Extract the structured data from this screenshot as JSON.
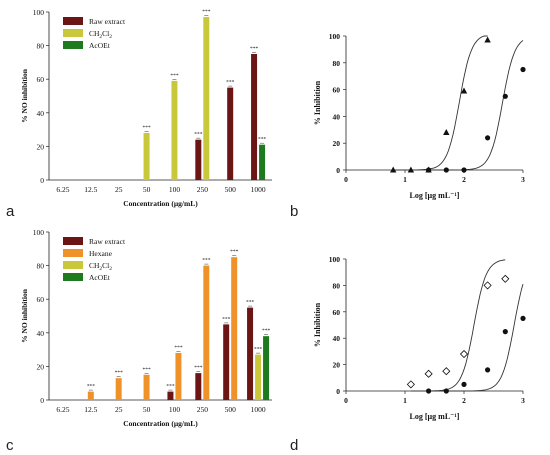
{
  "chart_data": [
    {
      "panel": "a",
      "type": "bar",
      "categories": [
        "6.25",
        "12.5",
        "25",
        "50",
        "100",
        "250",
        "500",
        "1000"
      ],
      "xlabel": "Concentration (µg/mL)",
      "ylabel": "% NO inhibition",
      "ylim": [
        0,
        100
      ],
      "yticks": [
        "0",
        "20",
        "40",
        "60",
        "80",
        "100"
      ],
      "legend_position": "top-left",
      "series": [
        {
          "name": "Raw extract",
          "color": "#6b1515",
          "values": [
            null,
            null,
            null,
            null,
            null,
            24,
            55,
            75
          ]
        },
        {
          "name": "CH2Cl2",
          "name_main": "CH",
          "name_sub1": "2",
          "name_mid": "Cl",
          "name_sub2": "2",
          "color": "#c8c83a",
          "values": [
            null,
            null,
            null,
            28,
            59,
            97,
            null,
            null
          ]
        },
        {
          "name": "AcOEt",
          "color": "#1e7a1e",
          "values": [
            null,
            null,
            null,
            null,
            null,
            null,
            null,
            21
          ]
        }
      ],
      "significance_label": "***"
    },
    {
      "panel": "b",
      "type": "scatter",
      "xlabel": "Log [µg mL⁻¹]",
      "ylabel": "% Inhibition",
      "xlim": [
        0,
        3
      ],
      "ylim": [
        0,
        100
      ],
      "xticks": [
        "0",
        "1",
        "2",
        "3"
      ],
      "yticks": [
        "0",
        "20",
        "40",
        "60",
        "80",
        "100"
      ],
      "series": [
        {
          "marker": "triangle",
          "x": [
            0.8,
            1.1,
            1.4,
            1.7,
            2.0,
            2.4
          ],
          "y": [
            0,
            0,
            0,
            28,
            59,
            97
          ]
        },
        {
          "marker": "circle",
          "x": [
            1.4,
            1.7,
            2.0,
            2.4,
            2.7,
            3.0
          ],
          "y": [
            0,
            0,
            0,
            24,
            55,
            75
          ]
        }
      ]
    },
    {
      "panel": "c",
      "type": "bar",
      "categories": [
        "6.25",
        "12.5",
        "25",
        "50",
        "100",
        "250",
        "500",
        "1000"
      ],
      "xlabel": "Concentration (µg/mL)",
      "ylabel": "% NO inhibition",
      "ylim": [
        0,
        100
      ],
      "yticks": [
        "0",
        "20",
        "40",
        "60",
        "80",
        "100"
      ],
      "legend_position": "top-left",
      "series": [
        {
          "name": "Raw extract",
          "color": "#6b1515",
          "values": [
            null,
            null,
            null,
            null,
            5,
            16,
            45,
            55
          ]
        },
        {
          "name": "Hexane",
          "color": "#f0922a",
          "values": [
            null,
            5,
            13,
            15,
            28,
            80,
            85,
            null
          ]
        },
        {
          "name": "CH2Cl2",
          "name_main": "CH",
          "name_sub1": "2",
          "name_mid": "Cl",
          "name_sub2": "2",
          "color": "#c8c83a",
          "values": [
            null,
            null,
            null,
            null,
            null,
            null,
            null,
            27
          ]
        },
        {
          "name": "AcOEt",
          "color": "#1e7a1e",
          "values": [
            null,
            null,
            null,
            null,
            null,
            null,
            null,
            38
          ]
        }
      ],
      "significance_label": "***"
    },
    {
      "panel": "d",
      "type": "scatter",
      "xlabel": "Log [µg mL⁻¹]",
      "ylabel": "% Inhibition",
      "xlim": [
        0,
        3
      ],
      "ylim": [
        0,
        100
      ],
      "xticks": [
        "0",
        "1",
        "2",
        "3"
      ],
      "yticks": [
        "0",
        "20",
        "40",
        "60",
        "80",
        "100"
      ],
      "series": [
        {
          "marker": "diamond",
          "x": [
            1.1,
            1.4,
            1.7,
            2.0,
            2.4,
            2.7
          ],
          "y": [
            5,
            13,
            15,
            28,
            80,
            85
          ]
        },
        {
          "marker": "circle",
          "x": [
            1.4,
            1.7,
            2.0,
            2.4,
            2.7,
            3.0
          ],
          "y": [
            0,
            0,
            5,
            16,
            45,
            55
          ]
        }
      ]
    }
  ],
  "panel_letters": [
    "a",
    "b",
    "c",
    "d"
  ]
}
